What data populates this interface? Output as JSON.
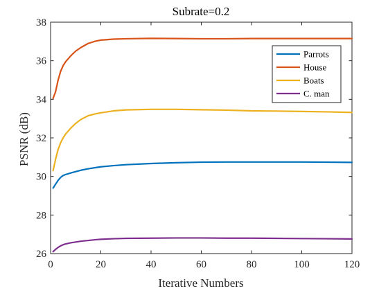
{
  "chart_data": {
    "type": "line",
    "title": "Subrate=0.2",
    "xlabel": "Iterative Numbers",
    "ylabel": "PSNR (dB)",
    "xlim": [
      0,
      120
    ],
    "ylim": [
      26,
      38
    ],
    "xticks": [
      "0",
      "20",
      "40",
      "60",
      "80",
      "100",
      "120"
    ],
    "yticks": [
      "26",
      "28",
      "30",
      "32",
      "34",
      "36",
      "38"
    ],
    "grid": false,
    "legend_position": "top-right",
    "x": [
      1,
      2,
      3,
      4,
      5,
      6,
      8,
      10,
      12,
      15,
      18,
      20,
      25,
      30,
      40,
      50,
      60,
      70,
      80,
      90,
      100,
      110,
      120
    ],
    "series": [
      {
        "name": "Parrots",
        "color": "#0072BD",
        "values": [
          29.4,
          29.6,
          29.8,
          29.95,
          30.05,
          30.1,
          30.18,
          30.25,
          30.32,
          30.4,
          30.46,
          30.5,
          30.56,
          30.61,
          30.67,
          30.71,
          30.74,
          30.75,
          30.75,
          30.75,
          30.75,
          30.74,
          30.73
        ]
      },
      {
        "name": "House",
        "color": "#D95319",
        "values": [
          34.05,
          34.4,
          35.0,
          35.45,
          35.75,
          35.95,
          36.25,
          36.5,
          36.68,
          36.9,
          37.02,
          37.07,
          37.12,
          37.14,
          37.16,
          37.15,
          37.14,
          37.14,
          37.15,
          37.15,
          37.15,
          37.15,
          37.15
        ]
      },
      {
        "name": "Boats",
        "color": "#EDB120",
        "values": [
          30.3,
          30.9,
          31.4,
          31.75,
          32.0,
          32.2,
          32.5,
          32.75,
          32.95,
          33.15,
          33.25,
          33.3,
          33.4,
          33.45,
          33.48,
          33.48,
          33.46,
          33.44,
          33.4,
          33.39,
          33.37,
          33.35,
          33.32
        ]
      },
      {
        "name": "C. man",
        "color": "#7E2F8E",
        "values": [
          26.1,
          26.22,
          26.32,
          26.4,
          26.46,
          26.5,
          26.56,
          26.6,
          26.64,
          26.68,
          26.72,
          26.74,
          26.77,
          26.79,
          26.8,
          26.81,
          26.81,
          26.8,
          26.8,
          26.79,
          26.78,
          26.77,
          26.76
        ]
      }
    ]
  }
}
